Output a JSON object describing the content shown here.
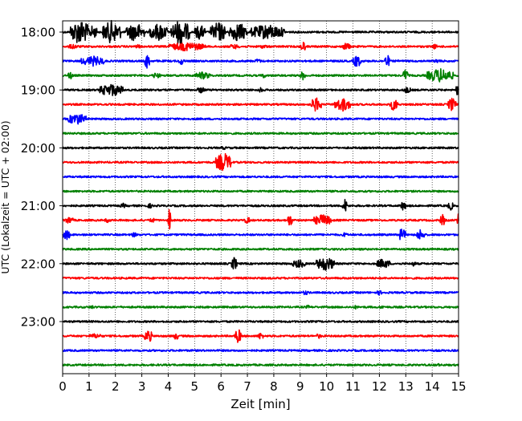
{
  "chart_data": {
    "type": "line",
    "chart_kind": "helicorder",
    "xlabel": "Zeit  [min]",
    "ylabel": "UTC (Lokalzeit = UTC + 02:00)",
    "xlim": [
      0,
      15
    ],
    "x_ticks": [
      0,
      1,
      2,
      3,
      4,
      5,
      6,
      7,
      8,
      9,
      10,
      11,
      12,
      13,
      14,
      15
    ],
    "x_tick_labels": [
      "0",
      "1",
      "2",
      "3",
      "4",
      "5",
      "6",
      "7",
      "8",
      "9",
      "10",
      "11",
      "12",
      "13",
      "14",
      "15"
    ],
    "y_tick_labels": [
      "18:00",
      "19:00",
      "20:00",
      "21:00",
      "22:00",
      "23:00"
    ],
    "grid": "vertical dotted at each minute",
    "color_cycle": [
      "#000000",
      "#ff0000",
      "#0000ff",
      "#008000"
    ],
    "series": [
      {
        "row_start": "18:00",
        "color": "#000000",
        "bursts": [
          [
            0.3,
            1.0,
            1.0
          ],
          [
            1.0,
            1.3,
            0.55
          ],
          [
            1.5,
            2.2,
            0.9
          ],
          [
            2.4,
            3.1,
            0.75
          ],
          [
            3.3,
            4.0,
            0.7
          ],
          [
            4.1,
            4.8,
            1.0
          ],
          [
            5.0,
            5.4,
            0.6
          ],
          [
            5.6,
            6.2,
            0.8
          ],
          [
            6.3,
            7.0,
            0.75
          ],
          [
            7.1,
            8.4,
            0.6
          ]
        ]
      },
      {
        "row_start": "18:15",
        "color": "#ff0000",
        "bursts": [
          [
            0.2,
            0.6,
            0.2
          ],
          [
            2.7,
            3.0,
            0.15
          ],
          [
            4.0,
            5.4,
            0.35
          ],
          [
            6.3,
            6.7,
            0.2
          ],
          [
            7.4,
            7.8,
            0.15
          ],
          [
            9.0,
            9.2,
            0.45
          ],
          [
            10.6,
            10.9,
            0.3
          ],
          [
            14.0,
            14.2,
            0.2
          ]
        ]
      },
      {
        "row_start": "18:30",
        "color": "#0000ff",
        "bursts": [
          [
            0.7,
            1.6,
            0.4
          ],
          [
            3.1,
            3.3,
            0.6
          ],
          [
            4.4,
            4.6,
            0.3
          ],
          [
            7.3,
            7.5,
            0.2
          ],
          [
            11.0,
            11.3,
            0.5
          ],
          [
            12.2,
            12.4,
            0.5
          ],
          [
            14.1,
            14.3,
            0.2
          ]
        ]
      },
      {
        "row_start": "18:45",
        "color": "#008000",
        "bursts": [
          [
            0.2,
            0.4,
            0.3
          ],
          [
            3.4,
            3.7,
            0.25
          ],
          [
            5.0,
            5.6,
            0.3
          ],
          [
            7.5,
            7.7,
            0.2
          ],
          [
            9.0,
            9.2,
            0.35
          ],
          [
            12.9,
            13.1,
            0.55
          ],
          [
            13.8,
            14.8,
            0.55
          ]
        ]
      },
      {
        "row_start": "19:00",
        "color": "#000000",
        "bursts": [
          [
            1.4,
            2.3,
            0.5
          ],
          [
            5.1,
            5.4,
            0.25
          ],
          [
            7.4,
            7.6,
            0.2
          ],
          [
            12.9,
            13.2,
            0.25
          ],
          [
            14.9,
            15.0,
            0.45
          ]
        ]
      },
      {
        "row_start": "19:15",
        "color": "#ff0000",
        "bursts": [
          [
            9.4,
            9.8,
            0.55
          ],
          [
            10.3,
            10.9,
            0.55
          ],
          [
            12.4,
            12.7,
            0.5
          ],
          [
            14.6,
            14.9,
            0.55
          ]
        ]
      },
      {
        "row_start": "19:30",
        "color": "#0000ff",
        "bursts": [
          [
            0.2,
            0.9,
            0.45
          ]
        ]
      },
      {
        "row_start": "19:45",
        "color": "#008000",
        "bursts": []
      },
      {
        "row_start": "20:00",
        "color": "#000000",
        "bursts": [
          [
            6.0,
            6.2,
            0.15
          ]
        ]
      },
      {
        "row_start": "20:15",
        "color": "#ff0000",
        "bursts": [
          [
            5.8,
            6.4,
            0.75
          ]
        ]
      },
      {
        "row_start": "20:30",
        "color": "#0000ff",
        "bursts": []
      },
      {
        "row_start": "20:45",
        "color": "#008000",
        "bursts": []
      },
      {
        "row_start": "21:00",
        "color": "#000000",
        "bursts": [
          [
            2.2,
            2.4,
            0.2
          ],
          [
            3.2,
            3.4,
            0.2
          ],
          [
            10.6,
            10.8,
            0.55
          ],
          [
            12.8,
            13.0,
            0.4
          ],
          [
            14.6,
            14.8,
            0.35
          ]
        ]
      },
      {
        "row_start": "21:15",
        "color": "#ff0000",
        "bursts": [
          [
            0.1,
            0.4,
            0.3
          ],
          [
            1.6,
            1.8,
            0.2
          ],
          [
            3.3,
            3.5,
            0.2
          ],
          [
            4.0,
            4.1,
            1.0
          ],
          [
            6.9,
            7.1,
            0.3
          ],
          [
            8.5,
            8.7,
            0.5
          ],
          [
            9.5,
            10.2,
            0.45
          ],
          [
            14.3,
            14.5,
            0.45
          ],
          [
            14.95,
            15.0,
            1.0
          ]
        ]
      },
      {
        "row_start": "21:30",
        "color": "#0000ff",
        "bursts": [
          [
            0.0,
            0.3,
            0.4
          ],
          [
            2.6,
            2.8,
            0.2
          ],
          [
            10.6,
            10.8,
            0.2
          ],
          [
            12.7,
            13.0,
            0.5
          ],
          [
            13.4,
            13.7,
            0.45
          ]
        ]
      },
      {
        "row_start": "21:45",
        "color": "#008000",
        "bursts": []
      },
      {
        "row_start": "22:00",
        "color": "#000000",
        "bursts": [
          [
            6.4,
            6.6,
            0.55
          ],
          [
            8.7,
            9.2,
            0.35
          ],
          [
            9.6,
            10.3,
            0.55
          ],
          [
            11.9,
            12.4,
            0.4
          ],
          [
            13.2,
            13.4,
            0.2
          ]
        ]
      },
      {
        "row_start": "22:15",
        "color": "#ff0000",
        "bursts": []
      },
      {
        "row_start": "22:30",
        "color": "#0000ff",
        "bursts": [
          [
            9.1,
            9.3,
            0.2
          ],
          [
            11.9,
            12.1,
            0.2
          ]
        ]
      },
      {
        "row_start": "22:45",
        "color": "#008000",
        "bursts": [
          [
            1.0,
            1.2,
            0.15
          ],
          [
            9.2,
            9.4,
            0.15
          ],
          [
            11.0,
            11.2,
            0.15
          ],
          [
            12.0,
            12.2,
            0.15
          ]
        ]
      },
      {
        "row_start": "23:00",
        "color": "#000000",
        "bursts": []
      },
      {
        "row_start": "23:15",
        "color": "#ff0000",
        "bursts": [
          [
            1.0,
            1.5,
            0.2
          ],
          [
            3.1,
            3.4,
            0.5
          ],
          [
            4.2,
            4.4,
            0.3
          ],
          [
            6.5,
            6.8,
            0.55
          ],
          [
            7.4,
            7.6,
            0.3
          ],
          [
            9.6,
            9.8,
            0.2
          ]
        ]
      },
      {
        "row_start": "23:30",
        "color": "#0000ff",
        "bursts": []
      },
      {
        "row_start": "23:45",
        "color": "#008000",
        "bursts": [
          [
            14.1,
            14.3,
            0.15
          ]
        ]
      }
    ]
  }
}
